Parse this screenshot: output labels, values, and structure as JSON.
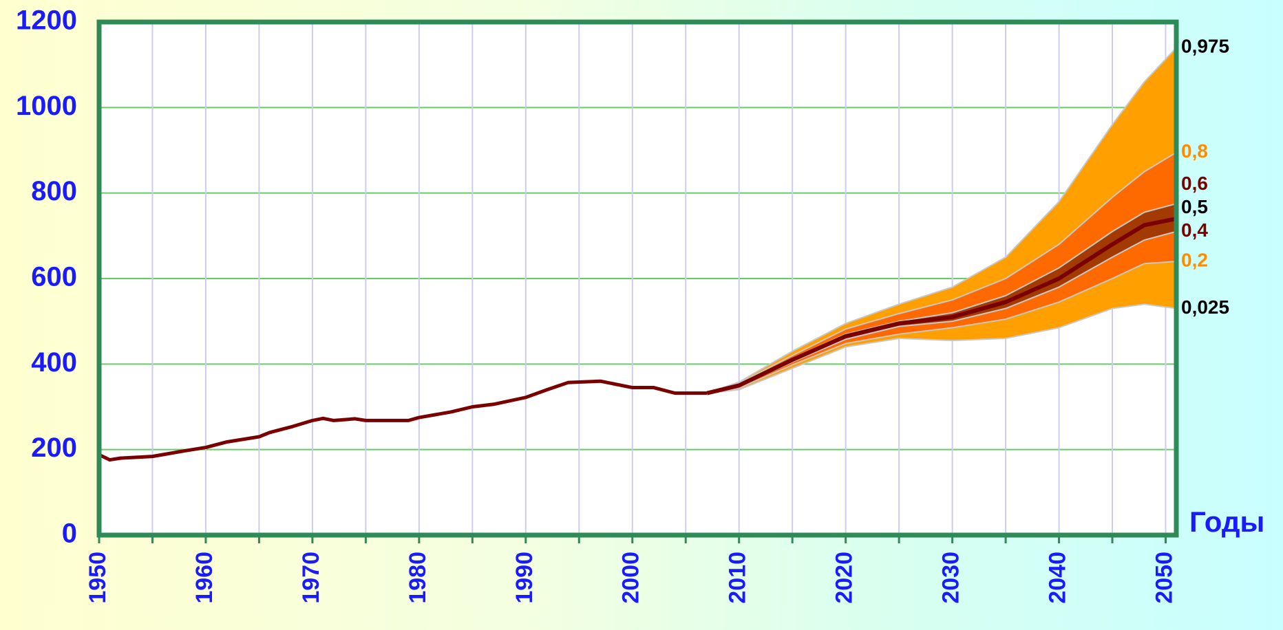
{
  "chart_data": {
    "type": "fan",
    "x_label": "Годы",
    "xlim": [
      1950,
      2051
    ],
    "xticks": [
      1950,
      1960,
      1970,
      1980,
      1990,
      2000,
      2010,
      2020,
      2030,
      2040,
      2050
    ],
    "x_minor_ticks": [
      1955,
      1965,
      1975,
      1985,
      1995,
      2005,
      2015,
      2025,
      2035,
      2045
    ],
    "ylim": [
      0,
      1200
    ],
    "yticks": [
      0,
      200,
      400,
      600,
      800,
      1000,
      1200
    ],
    "grid": true,
    "x": [
      1950,
      1951,
      1952,
      1955,
      1958,
      1960,
      1962,
      1965,
      1966,
      1968,
      1970,
      1971,
      1972,
      1974,
      1975,
      1979,
      1980,
      1983,
      1985,
      1987,
      1990,
      1992,
      1994,
      1997,
      1998,
      2000,
      2002,
      2004,
      2007
    ],
    "values": [
      188,
      176,
      180,
      184,
      197,
      205,
      218,
      230,
      240,
      253,
      268,
      273,
      268,
      272,
      268,
      268,
      275,
      288,
      300,
      306,
      322,
      340,
      357,
      360,
      355,
      345,
      345,
      332,
      332
    ],
    "color": "#7a0000",
    "forecast": {
      "x": [
        2007,
        2010,
        2015,
        2020,
        2025,
        2030,
        2035,
        2040,
        2045,
        2048,
        2051
      ],
      "series": [
        {
          "name": "0,025",
          "color": "#c8c8c8",
          "label_color": "#000000",
          "values": [
            332,
            340,
            390,
            440,
            460,
            455,
            460,
            485,
            530,
            540,
            530
          ]
        },
        {
          "name": "0,2",
          "color": "#c8c8c8",
          "label_color": "#ff8c00",
          "fill": "#ffa000",
          "values": [
            332,
            344,
            398,
            448,
            470,
            485,
            505,
            545,
            600,
            635,
            640
          ]
        },
        {
          "name": "0,4",
          "color": "#c8c8c8",
          "label_color": "#7a0000",
          "fill": "#ff6a00",
          "values": [
            332,
            348,
            405,
            458,
            488,
            500,
            530,
            580,
            650,
            690,
            710
          ]
        },
        {
          "name": "0,5",
          "color": "#7a0000",
          "label_color": "#000000",
          "fill": "#a33a00",
          "values": [
            332,
            350,
            410,
            465,
            495,
            510,
            545,
            600,
            680,
            725,
            740
          ]
        },
        {
          "name": "0,6",
          "color": "#c8c8c8",
          "label_color": "#7a0000",
          "fill": "#a33a00",
          "values": [
            332,
            352,
            413,
            470,
            500,
            520,
            560,
            625,
            710,
            755,
            775
          ]
        },
        {
          "name": "0,8",
          "color": "#c8c8c8",
          "label_color": "#ff8c00",
          "fill": "#ff6a00",
          "values": [
            332,
            355,
            420,
            482,
            518,
            550,
            600,
            680,
            790,
            850,
            895
          ]
        },
        {
          "name": "0,975",
          "color": "#c8c8c8",
          "label_color": "#000000",
          "fill": "#ffa000",
          "values": [
            332,
            358,
            430,
            495,
            540,
            580,
            650,
            780,
            960,
            1060,
            1140
          ]
        }
      ]
    }
  }
}
